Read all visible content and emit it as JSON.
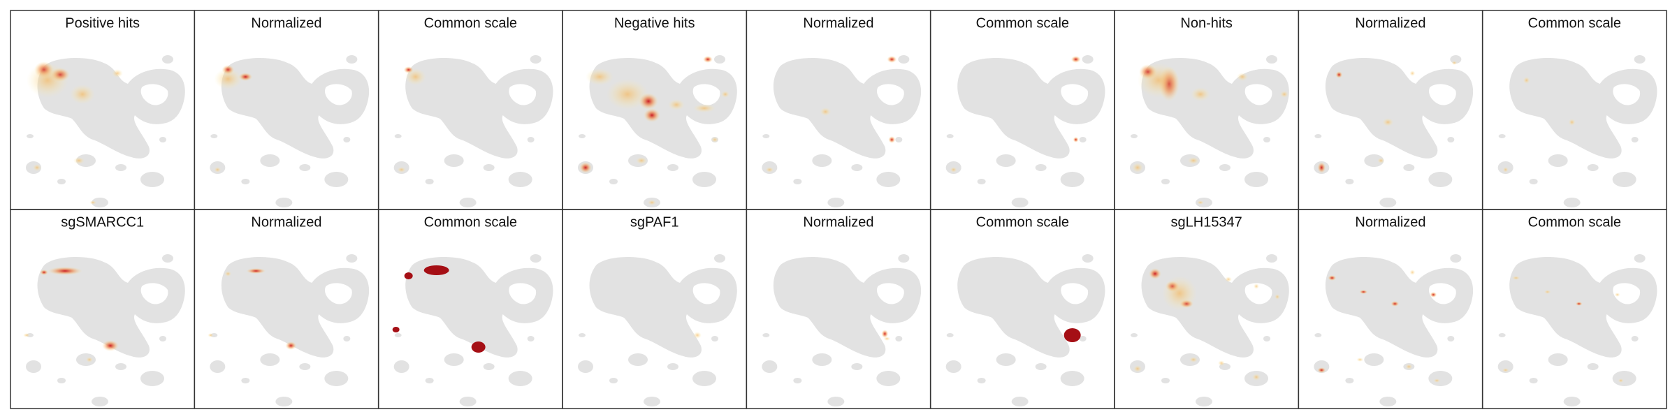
{
  "panels": {
    "rows": [
      [
        "Positive hits",
        "Normalized",
        "Common scale",
        "Negative hits",
        "Normalized",
        "Common scale",
        "Non-hits",
        "Normalized",
        "Common scale"
      ],
      [
        "sgSMARCC1",
        "Normalized",
        "Common scale",
        "sgPAF1",
        "Normalized",
        "Common scale",
        "sgLH15347",
        "Normalized",
        "Common scale"
      ]
    ]
  }
}
